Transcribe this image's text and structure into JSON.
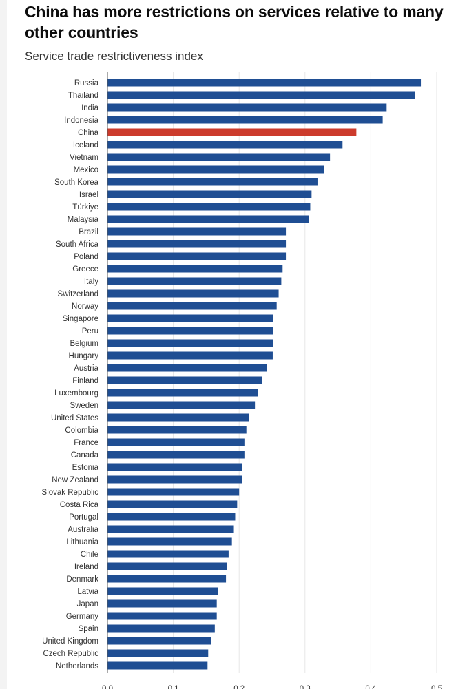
{
  "header": {
    "title": "China has more restrictions on services relative to many other countries",
    "subtitle": "Service trade restrictiveness index"
  },
  "chart_data": {
    "type": "bar",
    "orientation": "horizontal",
    "title": "China has more restrictions on services relative to many other countries",
    "subtitle": "Service trade restrictiveness index",
    "xlabel": "",
    "ylabel": "",
    "xlim": [
      0,
      0.5
    ],
    "xticks": [
      "0.0",
      "0.1",
      "0.2",
      "0.3",
      "0.4",
      "0.5"
    ],
    "xtick_values": [
      0.0,
      0.1,
      0.2,
      0.3,
      0.4,
      0.5
    ],
    "grid": true,
    "colors": {
      "default": "#1f4e93",
      "highlight": "#cc3b2c"
    },
    "highlight": "China",
    "categories": [
      "Russia",
      "Thailand",
      "India",
      "Indonesia",
      "China",
      "Iceland",
      "Vietnam",
      "Mexico",
      "South Korea",
      "Israel",
      "Türkiye",
      "Malaysia",
      "Brazil",
      "South Africa",
      "Poland",
      "Greece",
      "Italy",
      "Switzerland",
      "Norway",
      "Singapore",
      "Peru",
      "Belgium",
      "Hungary",
      "Austria",
      "Finland",
      "Luxembourg",
      "Sweden",
      "United States",
      "Colombia",
      "France",
      "Canada",
      "Estonia",
      "New Zealand",
      "Slovak Republic",
      "Costa Rica",
      "Portugal",
      "Australia",
      "Lithuania",
      "Chile",
      "Ireland",
      "Denmark",
      "Latvia",
      "Japan",
      "Germany",
      "Spain",
      "United Kingdom",
      "Czech Republic",
      "Netherlands"
    ],
    "values": [
      0.476,
      0.467,
      0.424,
      0.418,
      0.378,
      0.357,
      0.338,
      0.329,
      0.319,
      0.31,
      0.308,
      0.306,
      0.271,
      0.271,
      0.271,
      0.266,
      0.264,
      0.26,
      0.257,
      0.252,
      0.252,
      0.252,
      0.251,
      0.242,
      0.235,
      0.229,
      0.224,
      0.215,
      0.211,
      0.208,
      0.208,
      0.204,
      0.204,
      0.2,
      0.197,
      0.194,
      0.192,
      0.189,
      0.184,
      0.181,
      0.18,
      0.168,
      0.166,
      0.166,
      0.163,
      0.157,
      0.153,
      0.152
    ]
  }
}
